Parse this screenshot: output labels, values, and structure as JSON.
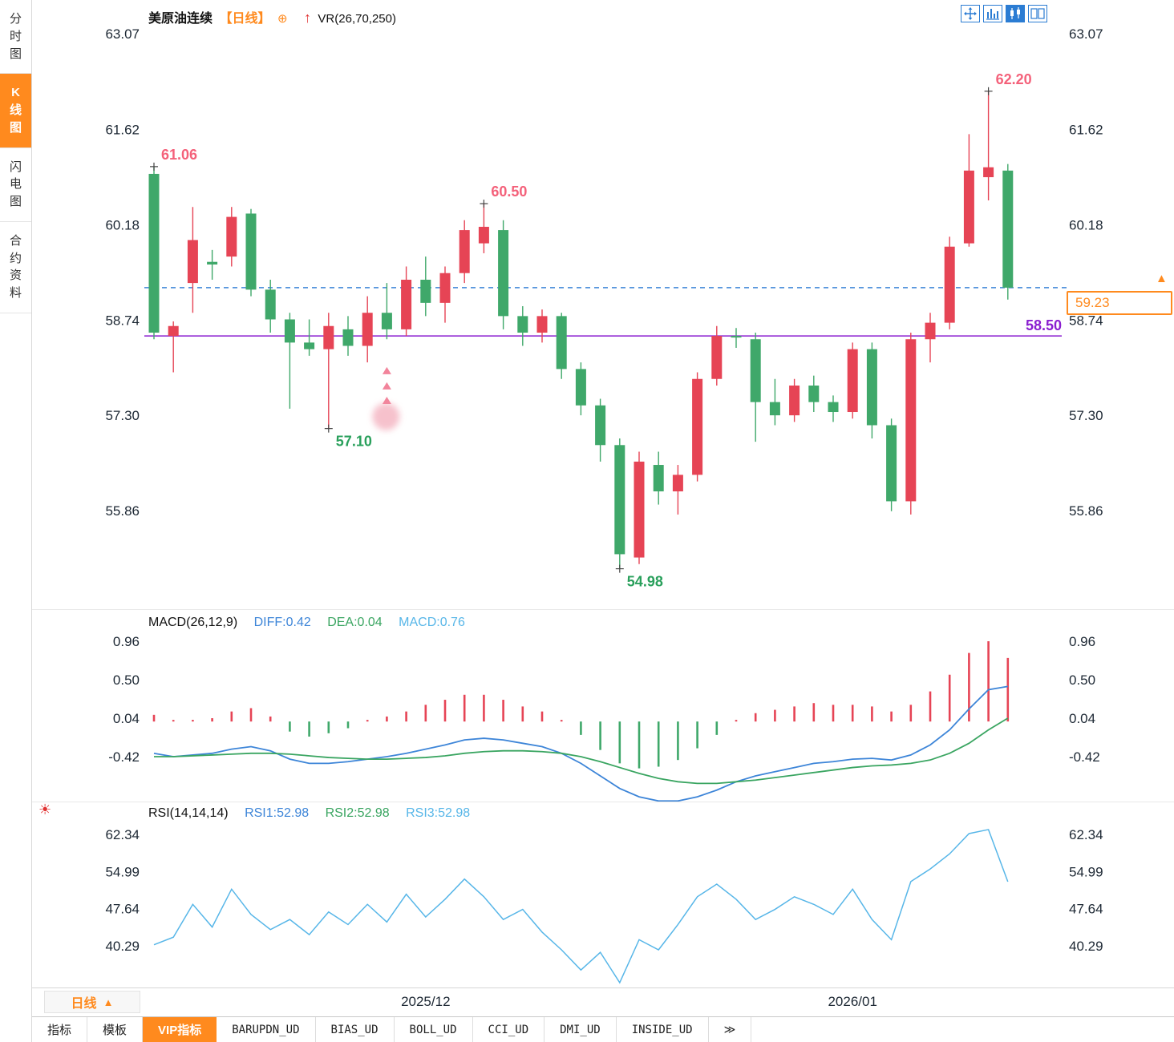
{
  "colors": {
    "up": "#e64455",
    "up_text": "#f4617a",
    "down": "#3fa86a",
    "down_text": "#2aa05c",
    "orange": "#ff8a1e",
    "blue": "#3d85d8",
    "purple": "#8a1fd0",
    "diff_line": "#3d85d8",
    "dea_line": "#3aa561",
    "macd_text": "#57b6e8",
    "rsi_line": "#57b6e8",
    "axis_text": "#1c2733",
    "toolbar_blue": "#2b7cd3"
  },
  "sidebar": {
    "tabs": [
      {
        "label": "分时图",
        "active": false
      },
      {
        "label": "K线图",
        "active": true
      },
      {
        "label": "闪电图",
        "active": false
      },
      {
        "label": "合约资料",
        "active": false
      }
    ]
  },
  "header": {
    "symbol": "美原油连续",
    "period": "【日线】",
    "add_icon": "⊕",
    "arrow": "↑",
    "overlay": "VR(26,70,250)"
  },
  "toolbar": {
    "icons": [
      {
        "name": "pan-icon",
        "filled": false
      },
      {
        "name": "grid-chart-icon",
        "filled": false
      },
      {
        "name": "kline-chart-icon",
        "filled": true
      },
      {
        "name": "split-view-icon",
        "filled": false
      }
    ]
  },
  "macd_header": {
    "title": "MACD(26,12,9)",
    "diff": "DIFF:0.42",
    "dea": "DEA:0.04",
    "macd": "MACD:0.76"
  },
  "rsi_header": {
    "title": "RSI(14,14,14)",
    "rsi1": "RSI1:52.98",
    "rsi2": "RSI2:52.98",
    "rsi3": "RSI3:52.98"
  },
  "price_tag": {
    "value": "59.23",
    "marker": "▲"
  },
  "period_selector": {
    "label": "日线",
    "arrow": "▲"
  },
  "x_axis": {
    "ticks": [
      {
        "index": 14,
        "label": "2025/12"
      },
      {
        "index": 36,
        "label": "2026/01"
      }
    ]
  },
  "bottom_tabs": [
    {
      "label": "指标",
      "active": false,
      "mono": false
    },
    {
      "label": "模板",
      "active": false,
      "mono": false
    },
    {
      "label": "VIP指标",
      "active": true,
      "mono": false
    },
    {
      "label": "BARUPDN_UD",
      "active": false,
      "mono": true
    },
    {
      "label": "BIAS_UD",
      "active": false,
      "mono": true
    },
    {
      "label": "BOLL_UD",
      "active": false,
      "mono": true
    },
    {
      "label": "CCI_UD",
      "active": false,
      "mono": true
    },
    {
      "label": "DMI_UD",
      "active": false,
      "mono": true
    },
    {
      "label": "INSIDE_UD",
      "active": false,
      "mono": true
    },
    {
      "label": "≫",
      "active": false,
      "mono": true
    }
  ],
  "chart_data": [
    {
      "type": "candlestick",
      "title": "美原油连续【日线】",
      "ylim": [
        55.86,
        63.07
      ],
      "y_ticks": [
        "63.07",
        "61.62",
        "60.18",
        "58.74",
        "57.30",
        "55.86"
      ],
      "last_price": "59.23",
      "candles": [
        [
          60.95,
          61.06,
          58.45,
          58.55
        ],
        [
          58.5,
          58.72,
          57.95,
          58.65
        ],
        [
          59.3,
          60.45,
          58.85,
          59.95
        ],
        [
          59.62,
          59.8,
          59.35,
          59.58
        ],
        [
          59.7,
          60.45,
          59.55,
          60.3
        ],
        [
          60.35,
          60.42,
          59.1,
          59.2
        ],
        [
          59.2,
          59.35,
          58.55,
          58.75
        ],
        [
          58.75,
          58.85,
          57.4,
          58.4
        ],
        [
          58.4,
          58.75,
          58.2,
          58.3
        ],
        [
          58.3,
          58.85,
          57.1,
          58.65
        ],
        [
          58.6,
          58.8,
          58.2,
          58.35
        ],
        [
          58.35,
          59.1,
          58.1,
          58.85
        ],
        [
          58.85,
          59.3,
          58.45,
          58.6
        ],
        [
          58.6,
          59.55,
          58.5,
          59.35
        ],
        [
          59.35,
          59.7,
          58.8,
          59.0
        ],
        [
          59.0,
          59.55,
          58.7,
          59.45
        ],
        [
          59.45,
          60.25,
          59.3,
          60.1
        ],
        [
          59.9,
          60.5,
          59.75,
          60.15
        ],
        [
          60.1,
          60.25,
          58.6,
          58.8
        ],
        [
          58.8,
          58.95,
          58.35,
          58.55
        ],
        [
          58.55,
          58.9,
          58.4,
          58.8
        ],
        [
          58.8,
          58.85,
          57.85,
          58.0
        ],
        [
          58.0,
          58.1,
          57.3,
          57.45
        ],
        [
          57.45,
          57.55,
          56.6,
          56.85
        ],
        [
          56.85,
          56.95,
          54.98,
          55.2
        ],
        [
          55.15,
          56.75,
          55.05,
          56.6
        ],
        [
          56.55,
          56.75,
          55.95,
          56.15
        ],
        [
          56.15,
          56.55,
          55.8,
          56.4
        ],
        [
          56.4,
          57.95,
          56.3,
          57.85
        ],
        [
          57.85,
          58.65,
          57.75,
          58.5
        ],
        [
          58.5,
          58.62,
          58.32,
          58.48
        ],
        [
          58.45,
          58.55,
          56.9,
          57.5
        ],
        [
          57.5,
          57.85,
          57.15,
          57.3
        ],
        [
          57.3,
          57.85,
          57.2,
          57.75
        ],
        [
          57.75,
          57.9,
          57.35,
          57.5
        ],
        [
          57.5,
          57.6,
          57.2,
          57.35
        ],
        [
          57.35,
          58.4,
          57.25,
          58.3
        ],
        [
          58.3,
          58.4,
          56.95,
          57.15
        ],
        [
          57.15,
          57.25,
          55.85,
          56.0
        ],
        [
          56.0,
          58.55,
          55.8,
          58.45
        ],
        [
          58.45,
          58.85,
          58.1,
          58.7
        ],
        [
          58.7,
          60.0,
          58.6,
          59.85
        ],
        [
          59.9,
          61.55,
          59.85,
          61.0
        ],
        [
          60.9,
          62.2,
          60.55,
          61.05
        ],
        [
          61.0,
          61.1,
          59.05,
          59.23
        ]
      ],
      "annotations": [
        {
          "text": "61.06",
          "index": 0,
          "at": "high"
        },
        {
          "text": "60.50",
          "index": 17,
          "at": "high"
        },
        {
          "text": "62.20",
          "index": 43,
          "at": "high"
        },
        {
          "text": "57.10",
          "index": 9,
          "at": "low"
        },
        {
          "text": "54.98",
          "index": 24,
          "at": "low"
        }
      ],
      "hlines": [
        {
          "value": 59.23,
          "style": "dashed",
          "color": "blue"
        },
        {
          "value": 58.5,
          "style": "solid",
          "color": "purple",
          "label": "58.50"
        }
      ],
      "decoration": {
        "type": "pink-arrows-sticker",
        "index": 12,
        "triangle_prices": [
          57.97,
          57.74,
          57.52
        ],
        "blob_price": 57.28
      }
    },
    {
      "type": "macd",
      "title": "MACD(26,12,9)",
      "y_ticks": [
        0.96,
        0.5,
        0.04,
        -0.42
      ],
      "diff_value": 0.42,
      "dea_value": 0.04,
      "macd_value": 0.76,
      "diff": [
        -0.38,
        -0.42,
        -0.4,
        -0.38,
        -0.33,
        -0.3,
        -0.35,
        -0.45,
        -0.5,
        -0.5,
        -0.48,
        -0.45,
        -0.42,
        -0.38,
        -0.33,
        -0.28,
        -0.22,
        -0.2,
        -0.22,
        -0.26,
        -0.3,
        -0.38,
        -0.5,
        -0.65,
        -0.8,
        -0.9,
        -0.95,
        -0.95,
        -0.9,
        -0.82,
        -0.72,
        -0.65,
        -0.6,
        -0.55,
        -0.5,
        -0.48,
        -0.45,
        -0.44,
        -0.46,
        -0.4,
        -0.28,
        -0.1,
        0.15,
        0.38,
        0.42
      ],
      "dea": [
        -0.42,
        -0.42,
        -0.41,
        -0.4,
        -0.39,
        -0.38,
        -0.38,
        -0.39,
        -0.41,
        -0.43,
        -0.44,
        -0.45,
        -0.45,
        -0.44,
        -0.43,
        -0.41,
        -0.38,
        -0.36,
        -0.35,
        -0.35,
        -0.36,
        -0.38,
        -0.42,
        -0.48,
        -0.55,
        -0.62,
        -0.68,
        -0.72,
        -0.74,
        -0.74,
        -0.72,
        -0.7,
        -0.67,
        -0.64,
        -0.61,
        -0.58,
        -0.55,
        -0.53,
        -0.52,
        -0.5,
        -0.46,
        -0.38,
        -0.26,
        -0.1,
        0.04
      ],
      "histogram": [
        0.08,
        0.0,
        0.02,
        0.04,
        0.12,
        0.16,
        0.06,
        -0.12,
        -0.18,
        -0.14,
        -0.08,
        0.0,
        0.06,
        0.12,
        0.2,
        0.26,
        0.32,
        0.32,
        0.26,
        0.18,
        0.12,
        0.0,
        -0.16,
        -0.34,
        -0.5,
        -0.56,
        -0.54,
        -0.46,
        -0.32,
        -0.16,
        0.0,
        0.1,
        0.14,
        0.18,
        0.22,
        0.2,
        0.2,
        0.18,
        0.12,
        0.2,
        0.36,
        0.56,
        0.82,
        0.96,
        0.76
      ]
    },
    {
      "type": "line",
      "title": "RSI(14,14,14)",
      "y_ticks": [
        "62.34",
        "54.99",
        "47.64",
        "40.29"
      ],
      "values": [
        40.5,
        42.0,
        48.5,
        44.0,
        51.5,
        46.5,
        43.5,
        45.5,
        42.5,
        47.0,
        44.5,
        48.5,
        45.0,
        50.5,
        46.0,
        49.5,
        53.5,
        50.0,
        45.5,
        47.5,
        43.0,
        39.5,
        35.5,
        39.0,
        33.0,
        41.5,
        39.5,
        44.5,
        50.0,
        52.5,
        49.5,
        45.5,
        47.5,
        50.0,
        48.5,
        46.5,
        51.5,
        45.5,
        41.5,
        53.0,
        55.5,
        58.5,
        62.5,
        63.3,
        52.98
      ]
    }
  ]
}
